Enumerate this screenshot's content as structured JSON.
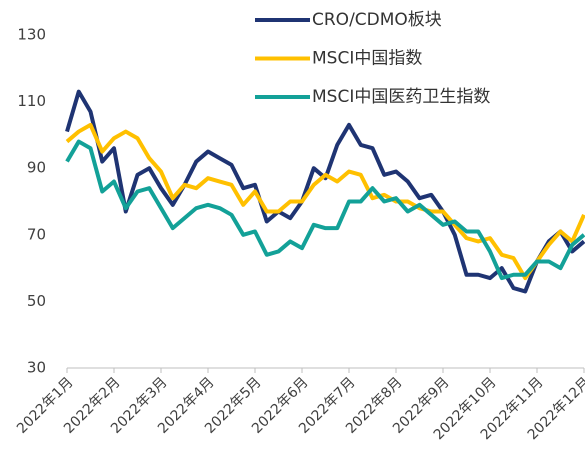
{
  "chart_data": {
    "type": "line",
    "categories": [
      "2022年1月",
      null,
      null,
      null,
      "2022年2月",
      null,
      null,
      null,
      "2022年3月",
      null,
      null,
      null,
      "2022年4月",
      null,
      null,
      null,
      "2022年5月",
      null,
      null,
      null,
      "2022年6月",
      null,
      null,
      null,
      "2022年7月",
      null,
      null,
      null,
      "2022年8月",
      null,
      null,
      null,
      "2022年9月",
      null,
      null,
      null,
      "2022年10月",
      null,
      null,
      null,
      "2022年11月",
      null,
      null,
      null,
      "2022年12月"
    ],
    "series": [
      {
        "name": "CRO/CDMO板块",
        "color": "#1f3473",
        "values": [
          101,
          113,
          107,
          92,
          96,
          77,
          88,
          90,
          84,
          79,
          85,
          92,
          95,
          93,
          91,
          84,
          85,
          74,
          77,
          75,
          80,
          90,
          87,
          97,
          103,
          97,
          96,
          88,
          89,
          86,
          81,
          82,
          77,
          70,
          58,
          58,
          57,
          60,
          54,
          53,
          62,
          68,
          71,
          65,
          68
        ]
      },
      {
        "name": "MSCI中国指数",
        "color": "#ffc000",
        "values": [
          98,
          101,
          103,
          95,
          99,
          101,
          99,
          93,
          89,
          81,
          85,
          84,
          87,
          86,
          85,
          79,
          83,
          77,
          77,
          80,
          80,
          85,
          88,
          86,
          89,
          88,
          81,
          82,
          80,
          80,
          78,
          77,
          77,
          73,
          69,
          68,
          69,
          64,
          63,
          57,
          62,
          67,
          71,
          68,
          76
        ]
      },
      {
        "name": "MSCI中国医药卫生指数",
        "color": "#13a198",
        "values": [
          92,
          98,
          96,
          83,
          86,
          78,
          83,
          84,
          78,
          72,
          75,
          78,
          79,
          78,
          76,
          70,
          71,
          64,
          65,
          68,
          66,
          73,
          72,
          72,
          80,
          80,
          84,
          80,
          81,
          77,
          79,
          76,
          73,
          74,
          71,
          71,
          65,
          57,
          58,
          58,
          62,
          62,
          60,
          67,
          70
        ]
      }
    ],
    "ylim": [
      30,
      130
    ],
    "yticks": [
      30,
      50,
      70,
      90,
      110,
      130
    ],
    "grid": false
  }
}
